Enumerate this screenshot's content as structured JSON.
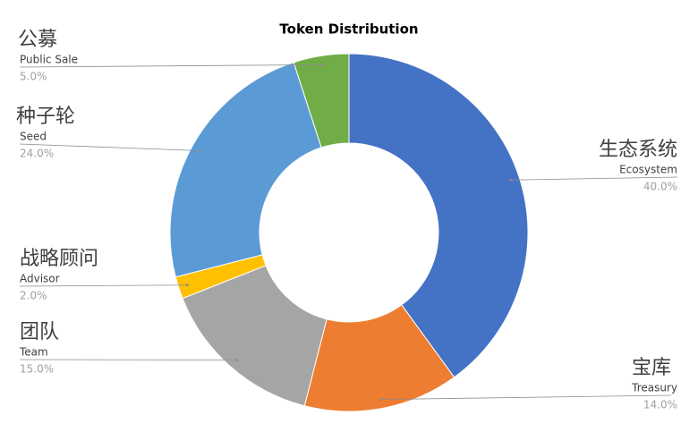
{
  "chart_data": {
    "type": "donut",
    "title": "Token Distribution",
    "categories": [
      "Ecosystem",
      "Treasury",
      "Team",
      "Advisor",
      "Seed",
      "Public Sale"
    ],
    "labels_zh": [
      "生态系统",
      "宝库",
      "团队",
      "战略顾问",
      "种子轮",
      "公募"
    ],
    "values": [
      40,
      14,
      15,
      2,
      24,
      5
    ],
    "value_labels": [
      "40.0%",
      "14.0%",
      "15.0%",
      "2.0%",
      "24.0%",
      "5.0%"
    ],
    "colors": [
      "#4472c4",
      "#ed7d31",
      "#a5a5a5",
      "#ffc000",
      "#5b9bd5",
      "#70ad47"
    ]
  }
}
